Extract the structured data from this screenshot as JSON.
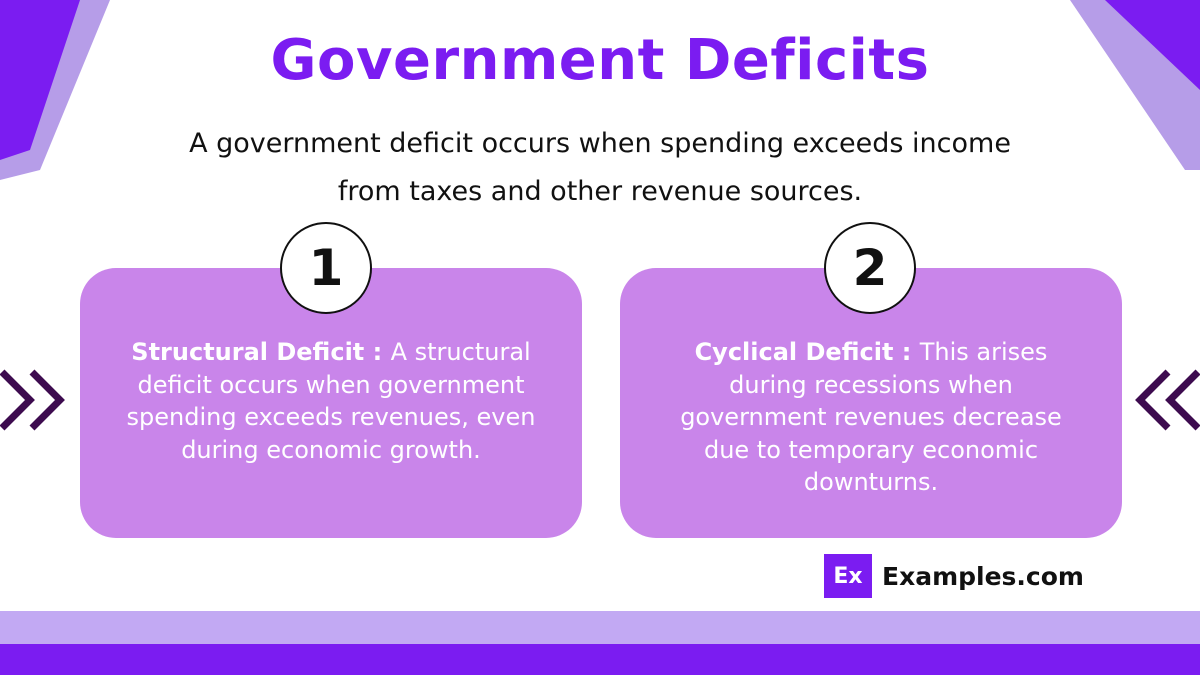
{
  "slide": {
    "title": "Government Deficits",
    "subtitle": "A government deficit occurs when spending exceeds income from taxes and other revenue sources.",
    "colors": {
      "accent": "#7b1cf1",
      "card": "#c985ea",
      "light_band": "#c2a9f3",
      "chevron": "#3d0b4f"
    }
  },
  "cards": [
    {
      "number": "1",
      "term": "Structural Deficit :",
      "description": "A structural deficit occurs when government spending exceeds revenues, even during economic growth."
    },
    {
      "number": "2",
      "term": "Cyclical Deficit :",
      "description": "This arises during recessions when government revenues decrease due to temporary economic downturns."
    }
  ],
  "icons": {
    "left": "double-chevron-right-icon",
    "right": "double-chevron-left-icon"
  },
  "brand": {
    "logo_text": "Ex",
    "name": "Examples.com"
  }
}
